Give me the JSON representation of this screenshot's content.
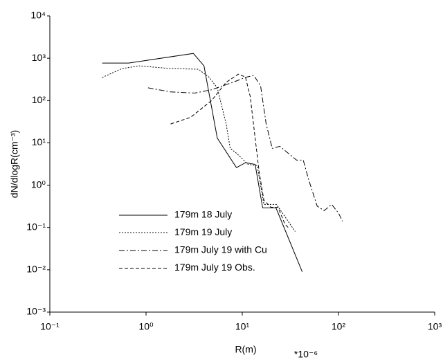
{
  "chart_data": {
    "type": "line",
    "xscale": "log",
    "yscale": "log",
    "xlabel": "R(m)",
    "ylabel": "dN/dlogR(cm⁻³)",
    "annotation": "*10⁻⁶",
    "xlim": [
      0.1,
      1000
    ],
    "ylim": [
      0.001,
      10000
    ],
    "xticks": [
      {
        "value": 0.1,
        "label": "10⁻¹"
      },
      {
        "value": 1,
        "label": "10⁰"
      },
      {
        "value": 10,
        "label": "10¹"
      },
      {
        "value": 100,
        "label": "10²"
      },
      {
        "value": 1000,
        "label": "10³"
      }
    ],
    "yticks": [
      {
        "value": 0.001,
        "label": "10⁻³"
      },
      {
        "value": 0.01,
        "label": "10⁻²"
      },
      {
        "value": 0.1,
        "label": "10⁻¹"
      },
      {
        "value": 1,
        "label": "10⁰"
      },
      {
        "value": 10,
        "label": "10¹"
      },
      {
        "value": 100,
        "label": "10²"
      },
      {
        "value": 1000,
        "label": "10³"
      },
      {
        "value": 10000,
        "label": "10⁴"
      }
    ],
    "legend": "left",
    "series": [
      {
        "name": "179m 18 July",
        "color": "#000000",
        "dash": "solid",
        "x": [
          0.35,
          0.66,
          3.1,
          4.0,
          5.5,
          8.7,
          10.8,
          13.6,
          16.3,
          22.4,
          42
        ],
        "values": [
          770,
          770,
          1300,
          660,
          13,
          2.6,
          3.4,
          3.1,
          0.29,
          0.29,
          0.009
        ]
      },
      {
        "name": "179m 19 July",
        "color": "#000000",
        "dash": "dotted",
        "x": [
          0.35,
          0.56,
          0.85,
          1.8,
          3.5,
          4.5,
          5.5,
          6.8,
          7.5,
          8.7,
          11.5,
          14.3,
          16.8,
          22.7,
          35.5
        ],
        "values": [
          350,
          570,
          660,
          570,
          550,
          360,
          200,
          28,
          7.4,
          5.7,
          3.1,
          2.9,
          0.35,
          0.35,
          0.08
        ]
      },
      {
        "name": "179m July 19 with Cu",
        "color": "#000000",
        "dash": "dashdot",
        "x": [
          1.05,
          1.8,
          3.2,
          4.8,
          8,
          11.1,
          13.2,
          15.5,
          17.7,
          20.5,
          24.6,
          30,
          36.7,
          43,
          49,
          60,
          71,
          85,
          100,
          110
        ],
        "values": [
          200,
          160,
          150,
          180,
          270,
          360,
          390,
          220,
          28,
          7.4,
          8.3,
          5.7,
          3.9,
          3.9,
          1.35,
          0.32,
          0.25,
          0.35,
          0.22,
          0.14
        ]
      },
      {
        "name": "179m July 19 Obs.",
        "color": "#000000",
        "dash": "dashed",
        "x": [
          1.8,
          2.9,
          4.8,
          6.8,
          9.1,
          10.8,
          12.1,
          13.6,
          15,
          16.8,
          19.9,
          23.5,
          27.8,
          30
        ],
        "values": [
          28,
          40,
          100,
          270,
          420,
          360,
          125,
          13,
          2,
          0.44,
          0.3,
          0.3,
          0.12,
          0.1
        ]
      }
    ]
  }
}
